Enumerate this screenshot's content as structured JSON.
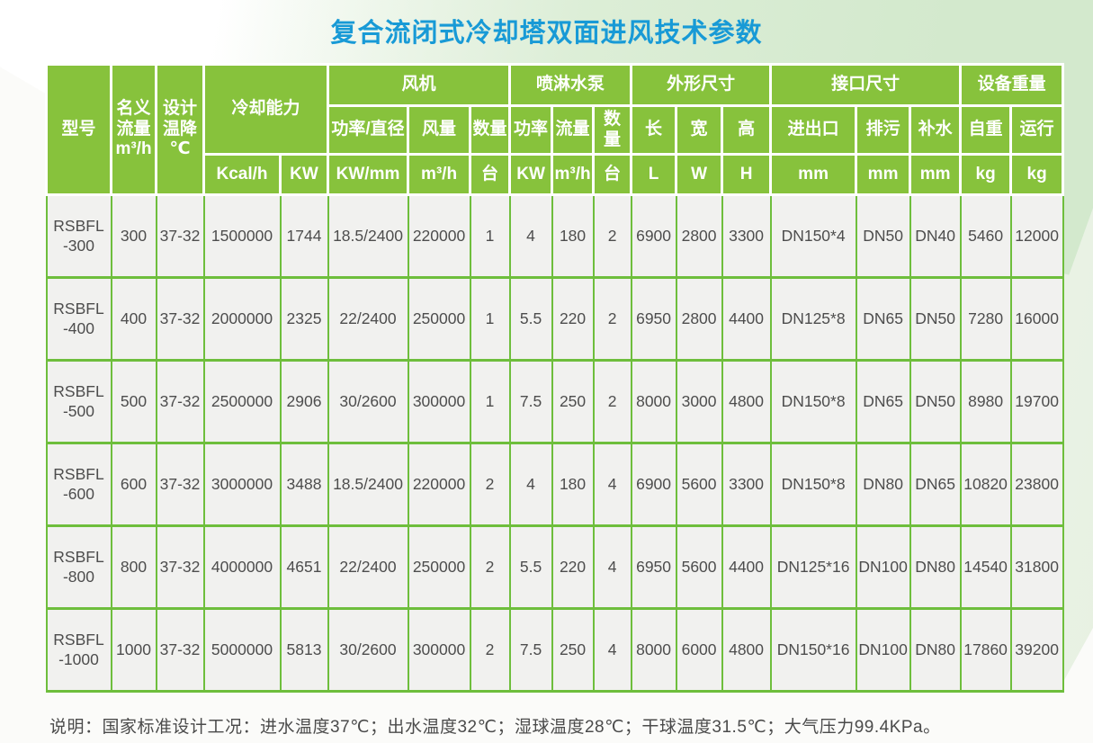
{
  "title": "复合流闭式冷却塔双面进风技术参数",
  "note": "说明：国家标准设计工况：进水温度37℃；出水温度32℃；湿球温度28℃；干球温度31.5℃；大气压力99.4KPa。",
  "colors": {
    "title_blue": "#189AD6",
    "header_green": "#87C23C",
    "grid_green": "#6EBE3C",
    "cell_bg": "#F1F1EF",
    "bg_green": "#D3E9CD"
  },
  "table": {
    "header": {
      "model": "型号",
      "nominal_flow_lines": [
        "名义",
        "流量",
        "m³/h"
      ],
      "design_temp_lines": [
        "设计",
        "温降",
        "℃"
      ],
      "groups": {
        "cooling": {
          "label": "冷却能力",
          "units": [
            "Kcal/h",
            "KW"
          ]
        },
        "fan": {
          "label": "风机",
          "cols": [
            "功率/直径",
            "风量",
            "数量"
          ],
          "units": [
            "KW/mm",
            "m³/h",
            "台"
          ]
        },
        "pump": {
          "label": "喷淋水泵",
          "cols": [
            "功率",
            "流量",
            "数量"
          ],
          "units": [
            "KW",
            "m³/h",
            "台"
          ]
        },
        "dims": {
          "label": "外形尺寸",
          "cols": [
            "长",
            "宽",
            "高"
          ],
          "units": [
            "L",
            "W",
            "H"
          ]
        },
        "ports": {
          "label": "接口尺寸",
          "cols": [
            "进出口",
            "排污",
            "补水"
          ],
          "units": [
            "mm",
            "mm",
            "mm"
          ]
        },
        "weight": {
          "label": "设备重量",
          "cols": [
            "自重",
            "运行"
          ],
          "units": [
            "kg",
            "kg"
          ]
        }
      }
    },
    "rows": [
      [
        "RSBFL-300",
        "300",
        "37-32",
        "1500000",
        "1744",
        "18.5/2400",
        "220000",
        "1",
        "4",
        "180",
        "2",
        "6900",
        "2800",
        "3300",
        "DN150*4",
        "DN50",
        "DN40",
        "5460",
        "12000"
      ],
      [
        "RSBFL-400",
        "400",
        "37-32",
        "2000000",
        "2325",
        "22/2400",
        "250000",
        "1",
        "5.5",
        "220",
        "2",
        "6950",
        "2800",
        "4400",
        "DN125*8",
        "DN65",
        "DN50",
        "7280",
        "16000"
      ],
      [
        "RSBFL-500",
        "500",
        "37-32",
        "2500000",
        "2906",
        "30/2600",
        "300000",
        "1",
        "7.5",
        "250",
        "2",
        "8000",
        "3000",
        "4800",
        "DN150*8",
        "DN65",
        "DN50",
        "8980",
        "19700"
      ],
      [
        "RSBFL-600",
        "600",
        "37-32",
        "3000000",
        "3488",
        "18.5/2400",
        "220000",
        "2",
        "4",
        "180",
        "4",
        "6900",
        "5600",
        "3300",
        "DN150*8",
        "DN80",
        "DN65",
        "10820",
        "23800"
      ],
      [
        "RSBFL-800",
        "800",
        "37-32",
        "4000000",
        "4651",
        "22/2400",
        "250000",
        "2",
        "5.5",
        "220",
        "4",
        "6950",
        "5600",
        "4400",
        "DN125*16",
        "DN100",
        "DN80",
        "14540",
        "31800"
      ],
      [
        "RSBFL-1000",
        "1000",
        "37-32",
        "5000000",
        "5813",
        "30/2600",
        "300000",
        "2",
        "7.5",
        "250",
        "4",
        "8000",
        "6000",
        "4800",
        "DN150*16",
        "DN100",
        "DN80",
        "17860",
        "39200"
      ]
    ]
  }
}
